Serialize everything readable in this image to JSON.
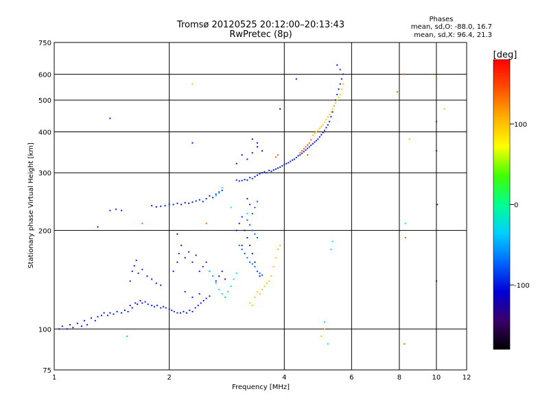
{
  "chart_data": {
    "type": "scatter",
    "title": "Tromsø 20120525 20:12:00–20:13:43",
    "subtitle": "RwPretec (8p)",
    "xlabel": "Frequency [MHz]",
    "ylabel": "Stationary phase Virtual Height [km]",
    "xscale": "log",
    "yscale": "log",
    "xlim": [
      1,
      12
    ],
    "ylim": [
      75,
      750
    ],
    "xticks": [
      1,
      2,
      4,
      6,
      8,
      10,
      12
    ],
    "yticks": [
      75,
      100,
      200,
      300,
      400,
      500,
      600,
      750
    ],
    "xgrid": [
      2,
      4,
      6,
      8,
      10
    ],
    "ygrid": [
      100,
      200,
      300,
      400,
      500,
      600
    ],
    "grid": true,
    "phases": {
      "title": "Phases",
      "line_o": "mean, sd,O: -88.0, 16.7",
      "line_x": "mean, sd,X:  96.4, 21.3"
    },
    "colorbar": {
      "label": "[deg]",
      "range": [
        -180,
        180
      ],
      "ticks": [
        100,
        0,
        -100
      ],
      "colormap": "rainbow",
      "colors": [
        "#000000",
        "#3a006a",
        "#0000d8",
        "#0066ff",
        "#00d0ff",
        "#00ff90",
        "#40ff00",
        "#ffff00",
        "#ffb000",
        "#ff5000",
        "#ff0000"
      ]
    },
    "series": [
      {
        "phase": -100,
        "points": [
          [
            1.03,
            100
          ],
          [
            1.05,
            102
          ],
          [
            1.08,
            100
          ],
          [
            1.1,
            103
          ],
          [
            1.12,
            101
          ],
          [
            1.15,
            104
          ],
          [
            1.18,
            102
          ],
          [
            1.2,
            106
          ],
          [
            1.22,
            103
          ],
          [
            1.25,
            108
          ],
          [
            1.28,
            106
          ],
          [
            1.3,
            109
          ],
          [
            1.33,
            110
          ],
          [
            1.35,
            112
          ],
          [
            1.38,
            110
          ],
          [
            1.4,
            112
          ],
          [
            1.43,
            111
          ],
          [
            1.46,
            113
          ],
          [
            1.5,
            112
          ],
          [
            1.53,
            114
          ],
          [
            1.56,
            113
          ],
          [
            1.58,
            118
          ],
          [
            1.6,
            116
          ],
          [
            1.63,
            120
          ],
          [
            1.65,
            119
          ],
          [
            1.68,
            122
          ],
          [
            1.7,
            120
          ],
          [
            1.73,
            121
          ],
          [
            1.76,
            119
          ],
          [
            1.8,
            118
          ],
          [
            1.83,
            117
          ],
          [
            1.86,
            118
          ],
          [
            1.9,
            116
          ],
          [
            1.93,
            117
          ],
          [
            1.96,
            116
          ],
          [
            2.0,
            115
          ],
          [
            2.03,
            114
          ],
          [
            2.06,
            113
          ],
          [
            2.1,
            112
          ],
          [
            2.14,
            112
          ],
          [
            2.18,
            113
          ],
          [
            2.22,
            112
          ],
          [
            2.26,
            114
          ],
          [
            2.3,
            113
          ],
          [
            2.34,
            116
          ],
          [
            2.38,
            118
          ],
          [
            2.42,
            120
          ],
          [
            2.46,
            122
          ],
          [
            2.5,
            124
          ],
          [
            2.55,
            126
          ],
          [
            1.58,
            140
          ],
          [
            1.6,
            150
          ],
          [
            1.62,
            156
          ],
          [
            1.64,
            162
          ],
          [
            1.66,
            148
          ],
          [
            1.7,
            152
          ],
          [
            1.75,
            145
          ],
          [
            1.8,
            142
          ],
          [
            1.85,
            138
          ],
          [
            1.9,
            136
          ],
          [
            2.05,
            150
          ],
          [
            2.1,
            160
          ],
          [
            2.12,
            170
          ],
          [
            2.15,
            180
          ],
          [
            2.2,
            165
          ],
          [
            2.25,
            172
          ],
          [
            2.3,
            160
          ],
          [
            2.35,
            168
          ],
          [
            2.4,
            150
          ],
          [
            2.45,
            155
          ],
          [
            2.5,
            160
          ],
          [
            2.55,
            150
          ],
          [
            2.6,
            145
          ],
          [
            2.65,
            140
          ],
          [
            2.7,
            145
          ],
          [
            2.75,
            150
          ],
          [
            2.8,
            142
          ],
          [
            2.2,
            130
          ],
          [
            2.3,
            125
          ],
          [
            2.4,
            128
          ],
          [
            1.4,
            230
          ],
          [
            1.45,
            232
          ],
          [
            1.5,
            230
          ],
          [
            1.8,
            238
          ],
          [
            1.85,
            236
          ],
          [
            1.9,
            237
          ],
          [
            1.95,
            238
          ],
          [
            2.0,
            240
          ],
          [
            2.05,
            240
          ],
          [
            2.1,
            242
          ],
          [
            2.15,
            240
          ],
          [
            2.2,
            243
          ],
          [
            2.25,
            242
          ],
          [
            2.3,
            244
          ],
          [
            2.35,
            246
          ],
          [
            2.4,
            248
          ],
          [
            2.45,
            245
          ],
          [
            2.5,
            250
          ],
          [
            2.55,
            255
          ],
          [
            2.6,
            252
          ],
          [
            2.65,
            258
          ],
          [
            2.7,
            262
          ],
          [
            2.75,
            265
          ],
          [
            3.0,
            285
          ],
          [
            3.05,
            283
          ],
          [
            3.1,
            284
          ],
          [
            3.15,
            286
          ],
          [
            3.2,
            285
          ],
          [
            3.25,
            290
          ],
          [
            3.3,
            288
          ],
          [
            3.35,
            292
          ],
          [
            3.4,
            295
          ],
          [
            3.45,
            298
          ],
          [
            3.5,
            300
          ],
          [
            3.55,
            302
          ],
          [
            3.6,
            300
          ],
          [
            3.65,
            305
          ],
          [
            3.7,
            303
          ],
          [
            3.75,
            306
          ],
          [
            3.8,
            308
          ],
          [
            3.85,
            310
          ],
          [
            3.9,
            312
          ],
          [
            3.95,
            315
          ],
          [
            4.0,
            318
          ],
          [
            4.05,
            320
          ],
          [
            4.1,
            322
          ],
          [
            4.15,
            325
          ],
          [
            4.2,
            328
          ],
          [
            4.25,
            330
          ],
          [
            4.3,
            334
          ],
          [
            4.35,
            338
          ],
          [
            4.4,
            340
          ],
          [
            4.45,
            344
          ],
          [
            4.5,
            348
          ],
          [
            4.55,
            352
          ],
          [
            4.6,
            356
          ],
          [
            4.65,
            360
          ],
          [
            4.7,
            364
          ],
          [
            4.75,
            368
          ],
          [
            4.8,
            372
          ],
          [
            4.85,
            376
          ],
          [
            4.9,
            380
          ],
          [
            4.95,
            386
          ],
          [
            5.0,
            392
          ],
          [
            5.05,
            398
          ],
          [
            5.1,
            404
          ],
          [
            5.15,
            412
          ],
          [
            5.2,
            420
          ],
          [
            5.25,
            430
          ],
          [
            5.3,
            445
          ],
          [
            5.35,
            460
          ],
          [
            5.4,
            480
          ],
          [
            5.45,
            500
          ],
          [
            5.5,
            520
          ],
          [
            5.55,
            540
          ],
          [
            5.6,
            560
          ],
          [
            5.65,
            580
          ],
          [
            5.7,
            600
          ],
          [
            5.6,
            620
          ],
          [
            5.5,
            640
          ],
          [
            3.0,
            320
          ],
          [
            3.1,
            340
          ],
          [
            3.2,
            330
          ],
          [
            3.3,
            345
          ],
          [
            3.4,
            360
          ],
          [
            3.5,
            350
          ],
          [
            3.3,
            380
          ],
          [
            3.4,
            370
          ],
          [
            3.0,
            200
          ],
          [
            3.05,
            210
          ],
          [
            3.1,
            220
          ],
          [
            3.15,
            200
          ],
          [
            3.2,
            190
          ],
          [
            3.25,
            180
          ],
          [
            3.3,
            170
          ],
          [
            3.35,
            160
          ],
          [
            3.4,
            150
          ],
          [
            3.45,
            145
          ],
          [
            3.2,
            250
          ],
          [
            3.25,
            240
          ],
          [
            3.1,
            180
          ],
          [
            3.15,
            170
          ],
          [
            10.0,
            430
          ],
          [
            10.0,
            350
          ],
          [
            10.05,
            240
          ],
          [
            10.0,
            140
          ],
          [
            1.4,
            440
          ],
          [
            2.3,
            370
          ],
          [
            3.9,
            470
          ],
          [
            4.3,
            580
          ],
          [
            1.3,
            205
          ],
          [
            2.1,
            195
          ]
        ]
      },
      {
        "phase": -75,
        "points": [
          [
            3.05,
            180
          ],
          [
            3.1,
            175
          ],
          [
            3.15,
            170
          ],
          [
            3.2,
            165
          ],
          [
            3.25,
            160
          ],
          [
            3.3,
            158
          ],
          [
            3.35,
            155
          ],
          [
            3.4,
            150
          ],
          [
            3.45,
            148
          ],
          [
            3.5,
            146
          ],
          [
            3.2,
            215
          ],
          [
            3.25,
            208
          ],
          [
            3.3,
            200
          ],
          [
            3.35,
            195
          ],
          [
            3.4,
            190
          ],
          [
            3.3,
            225
          ],
          [
            3.35,
            235
          ],
          [
            3.4,
            245
          ]
        ]
      },
      {
        "phase": -30,
        "points": [
          [
            2.55,
            150
          ],
          [
            2.6,
            145
          ],
          [
            2.65,
            138
          ],
          [
            2.7,
            132
          ],
          [
            2.75,
            128
          ],
          [
            2.8,
            125
          ],
          [
            2.85,
            130
          ],
          [
            2.9,
            135
          ],
          [
            2.95,
            142
          ],
          [
            3.0,
            148
          ],
          [
            2.7,
            260
          ],
          [
            2.75,
            270
          ],
          [
            2.65,
            255
          ],
          [
            1.55,
            95
          ],
          [
            5.1,
            105
          ],
          [
            5.2,
            90
          ],
          [
            5.35,
            185
          ],
          [
            5.3,
            175
          ]
        ]
      },
      {
        "phase": 0,
        "points": [
          [
            3.2,
            225
          ],
          [
            8.3,
            210
          ],
          [
            2.9,
            235
          ]
        ]
      },
      {
        "phase": 100,
        "points": [
          [
            3.25,
            120
          ],
          [
            3.3,
            118
          ],
          [
            3.35,
            125
          ],
          [
            3.4,
            130
          ],
          [
            3.45,
            128
          ],
          [
            3.5,
            132
          ],
          [
            3.55,
            135
          ],
          [
            3.6,
            138
          ],
          [
            3.65,
            140
          ],
          [
            3.7,
            145
          ],
          [
            3.75,
            155
          ],
          [
            3.8,
            165
          ],
          [
            3.85,
            175
          ],
          [
            3.9,
            180
          ],
          [
            4.75,
            390
          ],
          [
            4.8,
            395
          ],
          [
            4.85,
            400
          ],
          [
            4.9,
            405
          ],
          [
            4.95,
            410
          ],
          [
            5.0,
            415
          ],
          [
            5.05,
            420
          ],
          [
            5.1,
            428
          ],
          [
            5.15,
            436
          ],
          [
            5.2,
            444
          ],
          [
            5.25,
            452
          ],
          [
            5.3,
            460
          ],
          [
            5.35,
            470
          ],
          [
            5.4,
            480
          ],
          [
            5.45,
            490
          ],
          [
            5.5,
            500
          ],
          [
            5.55,
            510
          ],
          [
            5.6,
            520
          ],
          [
            5.65,
            540
          ],
          [
            5.7,
            560
          ],
          [
            5.1,
            100
          ],
          [
            5.0,
            95
          ],
          [
            8.5,
            380
          ],
          [
            10.5,
            470
          ],
          [
            2.3,
            560
          ]
        ]
      },
      {
        "phase": 140,
        "points": [
          [
            4.45,
            350
          ],
          [
            4.5,
            355
          ],
          [
            4.55,
            360
          ],
          [
            4.6,
            365
          ],
          [
            4.65,
            370
          ],
          [
            4.7,
            378
          ],
          [
            4.4,
            345
          ],
          [
            4.6,
            340
          ],
          [
            3.8,
            335
          ],
          [
            3.85,
            340
          ],
          [
            8.2,
            600
          ],
          [
            7.9,
            530
          ],
          [
            8.3,
            190
          ],
          [
            8.25,
            90
          ],
          [
            10.0,
            580
          ],
          [
            1.7,
            210
          ],
          [
            2.5,
            210
          ]
        ]
      }
    ]
  }
}
